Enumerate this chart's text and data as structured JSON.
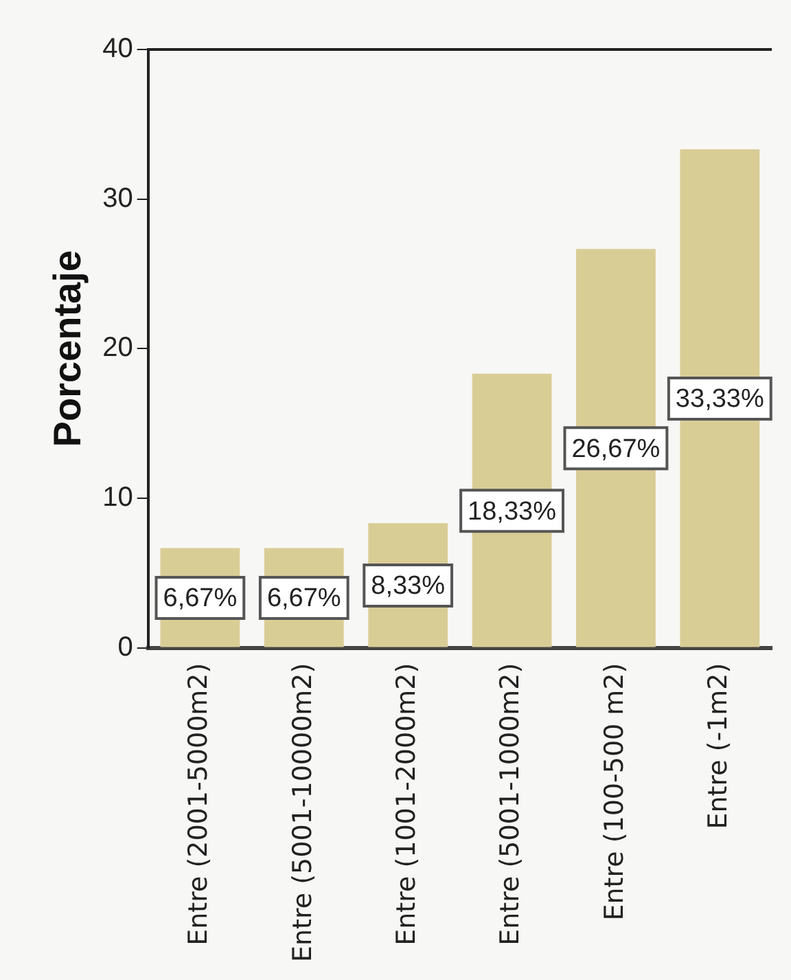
{
  "chart_data": {
    "type": "bar",
    "ylabel": "Porcentaje",
    "categories": [
      "Entre (2001-5000m2)",
      "Entre (5001-10000m2)",
      "Entre (1001-2000m2)",
      "Entre (5001-1000m2)",
      "Entre (100-500 m2)",
      "Entre (-1m2)"
    ],
    "values": [
      6.67,
      6.67,
      8.33,
      18.33,
      26.67,
      33.33
    ],
    "color": "#d9cd96",
    "value_labels": [
      "6,67%",
      "6,67%",
      "8,33%",
      "18,33%",
      "26,67%",
      "33,33%"
    ],
    "ylim": [
      0,
      40
    ],
    "yticks": [
      0,
      10,
      20,
      30,
      40
    ],
    "grid": false,
    "legend": false
  }
}
